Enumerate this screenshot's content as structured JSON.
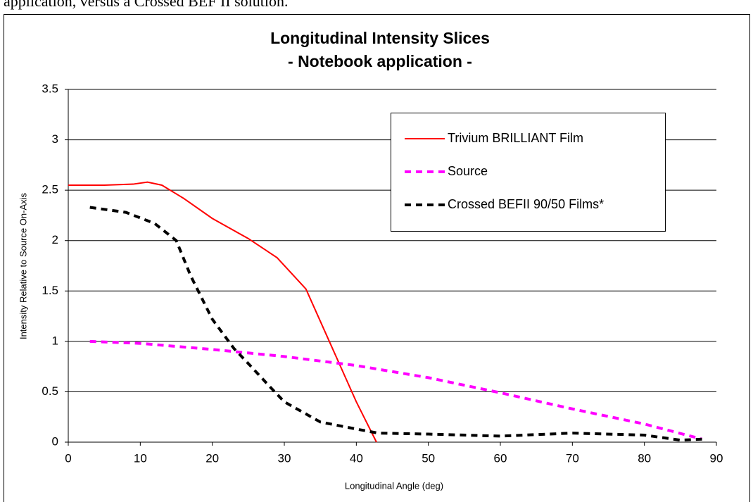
{
  "document": {
    "text": "application, versus a Crossed BEF II solution."
  },
  "chart_data": {
    "type": "line",
    "title": "Longitudinal Intensity Slices",
    "subtitle": "- Notebook application -",
    "x_label": "Longitudinal Angle (deg)",
    "y_label": "Intensity Relative to Source On-Axis",
    "xlim": [
      0,
      90
    ],
    "xticks": [
      0,
      10,
      20,
      30,
      40,
      50,
      60,
      70,
      80,
      90
    ],
    "ylim": [
      0,
      3.5
    ],
    "yticks": [
      0,
      0.5,
      1,
      1.5,
      2,
      2.5,
      3,
      3.5
    ],
    "grid": true,
    "legend": "upper right",
    "series": [
      {
        "name": "Trivium BRILLIANT Film",
        "color": "#ff0000",
        "style": "solid",
        "x": [
          0,
          5,
          9,
          11,
          13,
          16,
          20,
          25,
          29,
          33,
          37,
          40,
          42.8
        ],
        "values": [
          2.55,
          2.55,
          2.56,
          2.58,
          2.55,
          2.42,
          2.22,
          2.02,
          1.83,
          1.52,
          0.88,
          0.4,
          0
        ]
      },
      {
        "name": "Source",
        "color": "#ff00ff",
        "style": "dashed",
        "x": [
          3,
          10,
          20,
          30,
          40,
          50,
          60,
          70,
          80,
          88
        ],
        "values": [
          1.0,
          0.98,
          0.92,
          0.85,
          0.76,
          0.64,
          0.49,
          0.33,
          0.18,
          0.03
        ]
      },
      {
        "name": "Crossed BEFII 90/50 Films*",
        "color": "#000000",
        "style": "dashed",
        "x": [
          3,
          8,
          12,
          15,
          17,
          20,
          23,
          25,
          28,
          30,
          35,
          40,
          43,
          50,
          60,
          70,
          80,
          85,
          88
        ],
        "values": [
          2.33,
          2.28,
          2.17,
          2.0,
          1.65,
          1.22,
          0.93,
          0.78,
          0.55,
          0.4,
          0.2,
          0.13,
          0.09,
          0.08,
          0.06,
          0.09,
          0.07,
          0.02,
          0.03
        ]
      }
    ]
  }
}
